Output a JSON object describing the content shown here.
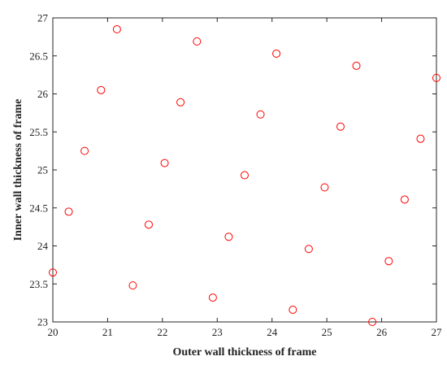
{
  "chart_data": {
    "type": "scatter",
    "title": "",
    "xlabel": "Outer wall thickness of frame",
    "ylabel": "Inner wall thickness of frame",
    "xlim": [
      20,
      27
    ],
    "ylim": [
      23,
      27
    ],
    "xticks": [
      "20",
      "21",
      "22",
      "23",
      "24",
      "25",
      "26",
      "27"
    ],
    "yticks": [
      "23",
      "23.5",
      "24",
      "24.5",
      "25",
      "25.5",
      "26",
      "26.5",
      "27"
    ],
    "grid": false,
    "legend": "none",
    "marker": "circle-open",
    "color": "#ff0000",
    "points": [
      {
        "x": 20.0,
        "y": 23.65
      },
      {
        "x": 20.29,
        "y": 24.45
      },
      {
        "x": 20.58,
        "y": 25.25
      },
      {
        "x": 20.88,
        "y": 26.05
      },
      {
        "x": 21.17,
        "y": 26.85
      },
      {
        "x": 21.46,
        "y": 23.48
      },
      {
        "x": 21.75,
        "y": 24.28
      },
      {
        "x": 22.04,
        "y": 25.09
      },
      {
        "x": 22.33,
        "y": 25.89
      },
      {
        "x": 22.63,
        "y": 26.69
      },
      {
        "x": 22.92,
        "y": 23.32
      },
      {
        "x": 23.21,
        "y": 24.12
      },
      {
        "x": 23.5,
        "y": 24.93
      },
      {
        "x": 23.79,
        "y": 25.73
      },
      {
        "x": 24.08,
        "y": 26.53
      },
      {
        "x": 24.38,
        "y": 23.16
      },
      {
        "x": 24.67,
        "y": 23.96
      },
      {
        "x": 24.96,
        "y": 24.77
      },
      {
        "x": 25.25,
        "y": 25.57
      },
      {
        "x": 25.54,
        "y": 26.37
      },
      {
        "x": 25.83,
        "y": 23.0
      },
      {
        "x": 26.13,
        "y": 23.8
      },
      {
        "x": 26.42,
        "y": 24.61
      },
      {
        "x": 26.71,
        "y": 25.41
      },
      {
        "x": 27.0,
        "y": 26.21
      }
    ]
  }
}
